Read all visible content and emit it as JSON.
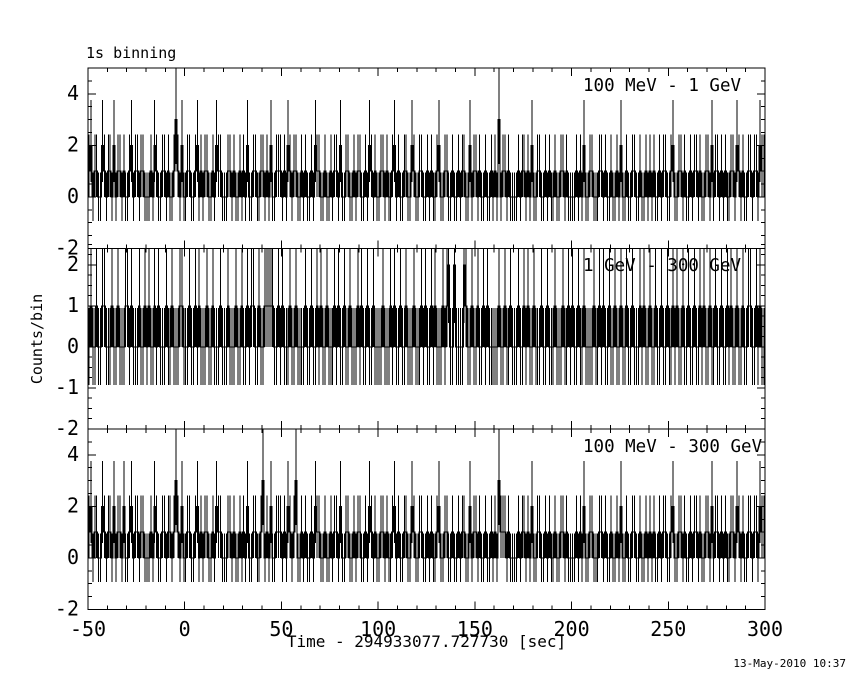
{
  "figure": {
    "background_color": "#ffffff",
    "line_color": "#000000"
  },
  "chart_data": {
    "type": "line",
    "subtype": "histogram-steps-with-poisson-errorbars",
    "title": "1s binning",
    "xlabel": "Time - 294933077.727730 [sec]",
    "ylabel": "Counts/bin",
    "datestamp": "13-May-2010 10:37",
    "grid": false,
    "legend": "none (energy-range label inside each panel, top right area)",
    "x_start": -50,
    "x_end": 300,
    "bin_width_sec": 1,
    "x_major_ticks": [
      -50,
      0,
      50,
      100,
      150,
      200,
      250,
      300
    ],
    "x_minor_step": 10,
    "errorbar_model": {
      "sigma_plus": "n==0 ? 0.95 : sqrt(n+0.75)+0.1",
      "sigma_minus": "n==0 ? 0.93 : sqrt(n)",
      "note": "bars clipped at panel y-limits, as in original"
    },
    "counts_encoding": "counts_digits: one digit = counts in one 1-second bin, first digit is bin starting at t=-50",
    "panels": [
      {
        "label": "100 MeV - 1 GeV",
        "ylim": [
          -2,
          5
        ],
        "y_major_ticks": [
          -2,
          0,
          2,
          4
        ],
        "y_minor_step": 0.5,
        "peak_bins": [
          {
            "t": -5,
            "counts": 3
          },
          {
            "t": 162,
            "counts": 3
          }
        ],
        "counts_digits": "12011002101102011010012011011000102100110100131020011001201011001021100011010010102001100110102001110102101100101001021100100101102001100101100102101001101001201001100210011001010012001100100101100201101001001010301101000010110102001100101001001101000010102001100011010010010200100110010010101001011001200110100101101001102011010100110210100110110211"
      },
      {
        "label": "1 GeV - 300 GeV",
        "ylim": [
          -2,
          2.4
        ],
        "y_major_ticks": [
          -2,
          -1,
          0,
          1,
          2
        ],
        "y_minor_step": 0.25,
        "peak_bins": [
          {
            "t": 136,
            "counts": 2
          },
          {
            "t": 139,
            "counts": 2
          },
          {
            "t": 144,
            "counts": 2
          }
        ],
        "counts_digits": "01001001100010010001101000100101001010001001000110001001010001001000100010001001001011001001111100101000100100001001001010010001010010010001010010010000100010100100100010001010010100010120020000210010010010100000100100100010010100100010010001000100101001001000010010100100100100100100010100100100100100101001001001001010010010010010100100100110010100"
      },
      {
        "label": "100 MeV - 300 GeV",
        "ylim": [
          -2,
          5
        ],
        "y_major_ticks": [
          -2,
          0,
          2,
          4
        ],
        "y_minor_step": 0.5,
        "peak_bins": [
          {
            "t": -5,
            "counts": 3
          },
          {
            "t": 40,
            "counts": 3
          },
          {
            "t": 57,
            "counts": 3
          },
          {
            "t": 162,
            "counts": 3
          }
        ],
        "counts_digits": "12011002101102011020012011011000102100110110131020011001201011001021100011010010102001100130102001110102101300101001021100100101102001100101100102101001101001201001100210011001010012001100100101100201101001001010311101000010110102001100101001001101000010102001100011010010010200100110010010101001011001200110100101101001102011010100110210100110110211"
      }
    ]
  }
}
